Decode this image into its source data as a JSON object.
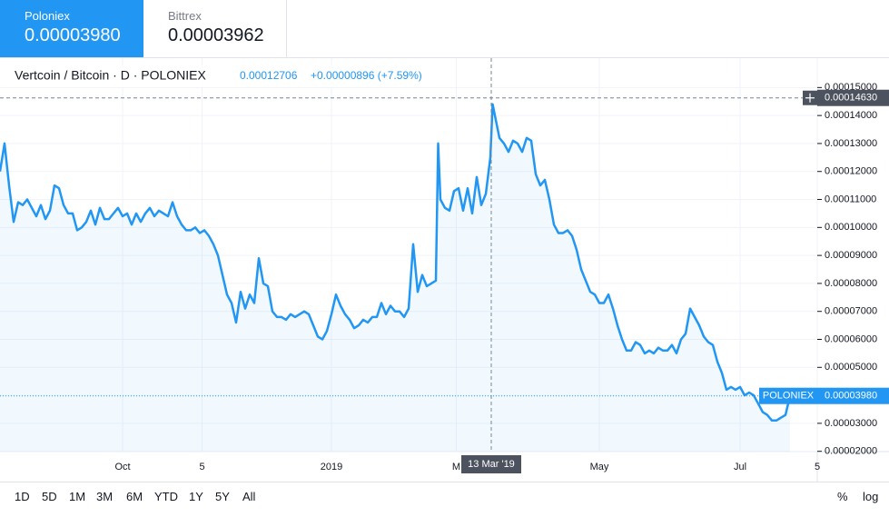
{
  "tabs": [
    {
      "name": "Poloniex",
      "price": "0.00003980"
    },
    {
      "name": "Bittrex",
      "price": "0.00003962"
    }
  ],
  "chart_data": {
    "type": "line",
    "title": "Vertcoin / Bitcoin · D · POLONIEX",
    "legend_value": "0.00012706",
    "legend_change": "+0.00000896 (+7.59%)",
    "color": "#2196f3",
    "grid": true,
    "x": [
      0,
      2,
      4,
      6,
      8,
      10,
      12,
      14,
      16,
      18,
      20,
      22,
      24,
      26,
      28,
      30,
      32,
      34,
      36,
      38,
      40,
      42,
      44,
      46,
      48,
      50,
      52,
      54,
      56,
      58,
      60,
      62,
      64,
      66,
      68,
      70,
      72,
      74,
      76,
      78,
      80,
      82,
      84,
      86,
      88,
      90,
      92,
      94,
      96,
      98,
      100,
      102,
      104,
      106,
      108,
      110,
      112,
      114,
      116,
      118,
      120,
      122,
      124,
      126,
      128,
      130,
      132,
      134,
      136,
      138,
      140,
      142,
      144,
      146,
      148,
      150,
      152,
      154,
      156,
      158,
      160,
      162,
      164,
      166,
      168,
      170,
      172,
      174,
      176,
      178,
      180,
      182,
      184,
      186,
      188,
      190,
      192,
      193,
      194,
      196,
      198,
      200,
      202,
      204,
      206,
      208,
      210,
      212,
      214,
      216,
      217,
      218,
      220,
      222,
      224,
      226,
      228,
      230,
      232,
      234,
      236,
      238,
      240,
      242,
      244,
      246,
      248,
      250,
      252,
      254,
      256,
      258,
      260,
      262,
      264,
      266,
      268,
      270,
      272,
      274,
      276,
      278,
      280,
      282,
      284,
      286,
      288,
      290,
      292,
      294,
      296,
      298,
      300,
      302,
      304,
      306,
      308,
      310,
      312,
      314,
      316,
      318,
      320,
      322,
      324,
      326,
      328,
      330,
      332,
      334,
      336,
      338,
      340,
      342,
      344,
      346,
      348
    ],
    "values": [
      0.00012,
      0.00013,
      0.000115,
      0.000102,
      0.000109,
      0.000108,
      0.00011,
      0.000107,
      0.000104,
      0.000108,
      0.000103,
      0.000106,
      0.000115,
      0.000114,
      0.000108,
      0.000105,
      0.000105,
      9.9e-05,
      0.0001,
      0.000102,
      0.000106,
      0.000101,
      0.000107,
      0.000103,
      0.000103,
      0.000105,
      0.000107,
      0.000104,
      0.000105,
      0.000101,
      0.000105,
      0.000102,
      0.000105,
      0.000107,
      0.000104,
      0.000106,
      0.000105,
      0.000104,
      0.000109,
      0.000104,
      0.000101,
      9.9e-05,
      9.9e-05,
      0.0001,
      9.8e-05,
      9.9e-05,
      9.7e-05,
      9.4e-05,
      9e-05,
      8.3e-05,
      7.6e-05,
      7.3e-05,
      6.6e-05,
      7.7e-05,
      7.1e-05,
      7.6e-05,
      7.3e-05,
      8.9e-05,
      8e-05,
      7.9e-05,
      7e-05,
      6.8e-05,
      6.8e-05,
      6.7e-05,
      6.9e-05,
      6.8e-05,
      6.9e-05,
      7e-05,
      6.9e-05,
      6.5e-05,
      6.1e-05,
      6e-05,
      6.3e-05,
      6.9e-05,
      7.6e-05,
      7.2e-05,
      6.9e-05,
      6.7e-05,
      6.4e-05,
      6.5e-05,
      6.7e-05,
      6.6e-05,
      6.8e-05,
      6.8e-05,
      7.3e-05,
      6.9e-05,
      7.2e-05,
      7e-05,
      7e-05,
      6.8e-05,
      7.1e-05,
      9.4e-05,
      7.7e-05,
      8.3e-05,
      7.9e-05,
      8e-05,
      8.1e-05,
      0.00013,
      0.00011,
      0.000107,
      0.000106,
      0.000113,
      0.000114,
      0.000106,
      0.000114,
      0.000105,
      0.000118,
      0.000108,
      0.000112,
      0.000125,
      0.000144,
      0.00014,
      0.000132,
      0.00013,
      0.000127,
      0.000131,
      0.00013,
      0.000127,
      0.000132,
      0.000131,
      0.000119,
      0.000115,
      0.000117,
      0.00011,
      0.000101,
      9.8e-05,
      9.8e-05,
      9.9e-05,
      9.7e-05,
      9.2e-05,
      8.5e-05,
      8.1e-05,
      7.7e-05,
      7.6e-05,
      7.3e-05,
      7.3e-05,
      7.6e-05,
      7.1e-05,
      6.5e-05,
      6e-05,
      5.6e-05,
      5.6e-05,
      5.9e-05,
      5.8e-05,
      5.5e-05,
      5.6e-05,
      5.5e-05,
      5.7e-05,
      5.6e-05,
      5.6e-05,
      5.8e-05,
      5.5e-05,
      6e-05,
      6.2e-05,
      7.1e-05,
      6.8e-05,
      6.5e-05,
      6.1e-05,
      5.9e-05,
      5.8e-05,
      5.2e-05,
      4.8e-05,
      4.2e-05,
      4.3e-05,
      4.2e-05,
      4.3e-05,
      4e-05,
      4.1e-05,
      4e-05,
      3.7e-05,
      3.4e-05,
      3.3e-05,
      3.1e-05,
      3.1e-05,
      3.2e-05,
      3.3e-05,
      3.98e-05
    ],
    "xlim": [
      0,
      360
    ],
    "xticks": [
      {
        "value": 54,
        "label": "Oct"
      },
      {
        "value": 89,
        "label": "5"
      },
      {
        "value": 146,
        "label": "2019"
      },
      {
        "value": 201,
        "label": "M"
      },
      {
        "value": 264,
        "label": "May"
      },
      {
        "value": 326,
        "label": "Jul"
      },
      {
        "value": 360,
        "label": "5"
      }
    ],
    "ylim": [
      1.99e-05,
      0.0001605
    ],
    "yticks": [
      {
        "value": 2e-05,
        "label": "0.00002000"
      },
      {
        "value": 3e-05,
        "label": "0.00003000"
      },
      {
        "value": 4e-05,
        "label": "0.00004000"
      },
      {
        "value": 5e-05,
        "label": "0.00005000"
      },
      {
        "value": 6e-05,
        "label": "0.00006000"
      },
      {
        "value": 7e-05,
        "label": "0.00007000"
      },
      {
        "value": 8e-05,
        "label": "0.00008000"
      },
      {
        "value": 9e-05,
        "label": "0.00009000"
      },
      {
        "value": 0.0001,
        "label": "0.00010000"
      },
      {
        "value": 0.00011,
        "label": "0.00011000"
      },
      {
        "value": 0.00012,
        "label": "0.00012000"
      },
      {
        "value": 0.00013,
        "label": "0.00013000"
      },
      {
        "value": 0.00014,
        "label": "0.00014000"
      },
      {
        "value": 0.00015,
        "label": "0.00015000"
      }
    ],
    "crosshair": {
      "x": 216.4,
      "x_label": "13 Mar '19",
      "y": 0.0001463,
      "y_label": "0.00014630"
    },
    "last_price": {
      "name": "POLONIEX",
      "value": 3.98e-05,
      "label": "0.00003980"
    }
  },
  "toolbar": {
    "ranges": [
      "1D",
      "5D",
      "1M",
      "3M",
      "6M",
      "YTD",
      "1Y",
      "5Y",
      "All"
    ],
    "options": [
      "%",
      "log"
    ]
  }
}
